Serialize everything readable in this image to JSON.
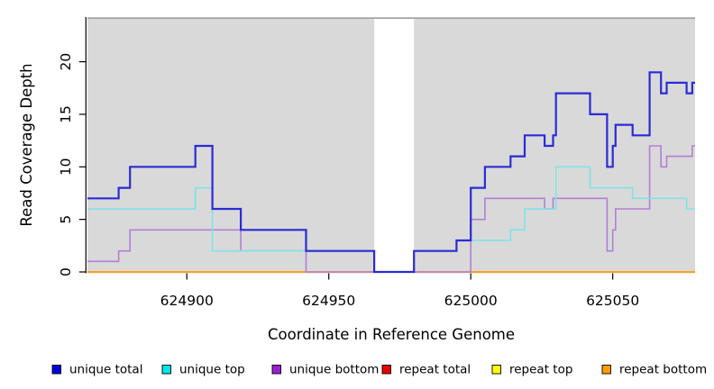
{
  "chart_data": {
    "type": "line",
    "subtype": "step-coverage-plot",
    "title": "",
    "xlabel": "Coordinate in Reference Genome",
    "ylabel": "Read Coverage Depth",
    "xlim": [
      624865,
      625079
    ],
    "ylim": [
      0,
      24.2
    ],
    "x_ticks": [
      624900,
      624950,
      625000,
      625050
    ],
    "x_tick_labels": [
      "624900",
      "624950",
      "625000",
      "625050"
    ],
    "y_ticks": [
      0,
      5,
      10,
      15,
      20
    ],
    "y_tick_labels": [
      "0",
      "5",
      "10",
      "15",
      "20"
    ],
    "grid": "off",
    "panel_background": "#d9d9d9",
    "gap_region": {
      "x_start": 624966,
      "x_end": 624980
    },
    "legend_position": "bottom",
    "series": [
      {
        "name": "unique total",
        "line_color": "#2b2bd5",
        "swatch_color": "#0000dd",
        "line_width": 2.2,
        "points": [
          [
            624865,
            7
          ],
          [
            624876,
            8
          ],
          [
            624880,
            10
          ],
          [
            624903,
            12
          ],
          [
            624909,
            6
          ],
          [
            624919,
            4
          ],
          [
            624942,
            2
          ],
          [
            624966,
            0
          ],
          [
            624980,
            2
          ],
          [
            624995,
            3
          ],
          [
            625000,
            8
          ],
          [
            625005,
            10
          ],
          [
            625014,
            11
          ],
          [
            625019,
            13
          ],
          [
            625026,
            12
          ],
          [
            625029,
            13
          ],
          [
            625030,
            17
          ],
          [
            625042,
            15
          ],
          [
            625048,
            10
          ],
          [
            625050,
            12
          ],
          [
            625051,
            14
          ],
          [
            625057,
            13
          ],
          [
            625063,
            19
          ],
          [
            625067,
            17
          ],
          [
            625069,
            18
          ],
          [
            625076,
            17
          ],
          [
            625078,
            18
          ]
        ]
      },
      {
        "name": "unique top",
        "line_color": "#7fe3e6",
        "swatch_color": "#00e4e8",
        "line_width": 1.6,
        "points": [
          [
            624865,
            6
          ],
          [
            624903,
            8
          ],
          [
            624909,
            2
          ],
          [
            624966,
            0
          ],
          [
            624980,
            2
          ],
          [
            624995,
            3
          ],
          [
            625014,
            4
          ],
          [
            625019,
            6
          ],
          [
            625030,
            10
          ],
          [
            625042,
            8
          ],
          [
            625057,
            7
          ],
          [
            625076,
            6
          ]
        ]
      },
      {
        "name": "unique bottom",
        "line_color": "#b27fd8",
        "swatch_color": "#9a1fd3",
        "line_width": 1.6,
        "points": [
          [
            624865,
            1
          ],
          [
            624876,
            2
          ],
          [
            624880,
            4
          ],
          [
            624919,
            2
          ],
          [
            624942,
            0
          ],
          [
            625000,
            5
          ],
          [
            625005,
            7
          ],
          [
            625026,
            6
          ],
          [
            625029,
            7
          ],
          [
            625048,
            2
          ],
          [
            625050,
            4
          ],
          [
            625051,
            6
          ],
          [
            625063,
            12
          ],
          [
            625067,
            10
          ],
          [
            625069,
            11
          ],
          [
            625078,
            12
          ]
        ]
      },
      {
        "name": "repeat total",
        "line_color": "#e80000",
        "swatch_color": "#e80000",
        "line_width": 1.5,
        "points": [
          [
            624865,
            0
          ]
        ]
      },
      {
        "name": "repeat top",
        "line_color": "#ffff00",
        "swatch_color": "#ffff00",
        "line_width": 1.5,
        "points": [
          [
            624865,
            0
          ]
        ]
      },
      {
        "name": "repeat bottom",
        "line_color": "#ff9d1d",
        "swatch_color": "#ff9d00",
        "line_width": 1.8,
        "points": [
          [
            624865,
            0
          ]
        ]
      }
    ]
  }
}
